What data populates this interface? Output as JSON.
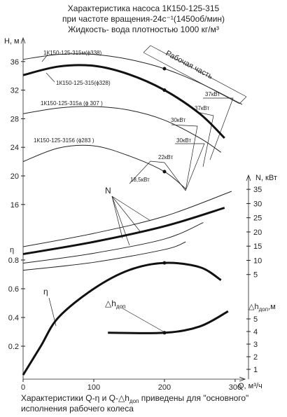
{
  "chart_data": {
    "type": "line",
    "title": [
      "Характеристика насоса 1К150-125-315",
      "при частоте вращения-24с⁻¹(1450об/мин)",
      "Жидкость- вода плотностью 1000 кг/м³"
    ],
    "caption": [
      [
        "Характеристики Q-η и Q-△h",
        "доп",
        " приведены для \"основного\""
      ],
      [
        "исполнения рабочего колеса"
      ]
    ],
    "x_label": "Q, м³/ч",
    "y_label": "H, м",
    "y2_label": "N, кВт",
    "y3_label": "η",
    "y4_label": {
      "main": "△h",
      "sub": "доп",
      "unit": ",м"
    },
    "xlim": [
      0,
      310
    ],
    "xticks": [
      0,
      100,
      200,
      300
    ],
    "ylim": [
      15,
      38.5
    ],
    "yticks": [
      16,
      20,
      24,
      28,
      32,
      36
    ],
    "y2lim": [
      0,
      38
    ],
    "y2ticks": [
      5,
      10,
      15,
      20,
      25,
      30,
      35
    ],
    "y3lim": [
      0,
      0.9
    ],
    "y3ticks": [
      0.2,
      0.4,
      0.6,
      0.8
    ],
    "y4lim": [
      1,
      6
    ],
    "y4ticks": [
      1,
      2,
      3,
      4,
      5
    ],
    "series": [
      {
        "name": "1К150-125-315м(ϕ338)",
        "color": "#222",
        "linewidth": 1,
        "axis": "y",
        "x": [
          0,
          50,
          100,
          150,
          200,
          250,
          300,
          310
        ],
        "values": [
          36.3,
          37.0,
          37.0,
          36.3,
          35.0,
          33.0,
          30.5,
          30.0
        ]
      },
      {
        "name": "1К150-125-315(ϕ328)",
        "color": "#111",
        "linewidth": 3,
        "axis": "y",
        "x": [
          0,
          50,
          100,
          150,
          200,
          250,
          285
        ],
        "values": [
          34.1,
          35.3,
          35.4,
          34.2,
          32.0,
          28.7,
          25.3
        ]
      },
      {
        "name": "1К150-125-315а (ϕ 307 )",
        "color": "#222",
        "linewidth": 1,
        "axis": "y",
        "x": [
          0,
          50,
          100,
          150,
          200,
          250,
          280
        ],
        "values": [
          28.7,
          29.5,
          29.7,
          29.2,
          27.8,
          25.3,
          23.3
        ]
      },
      {
        "name": "1К150-125-3156 (ϕ283 )",
        "color": "#222",
        "linewidth": 1,
        "axis": "y",
        "x": [
          0,
          50,
          100,
          150,
          200,
          230
        ],
        "values": [
          22.0,
          23.9,
          24.2,
          22.8,
          20.6,
          18.2
        ]
      },
      {
        "name": "N",
        "color": "#222",
        "linewidth": 1,
        "axis": "y2",
        "x": [
          0,
          100,
          200,
          295
        ],
        "values": [
          14.8,
          19.5,
          25.5,
          34.3
        ]
      },
      {
        "name": "N",
        "color": "#111",
        "linewidth": 3,
        "axis": "y2",
        "x": [
          0,
          100,
          200,
          285
        ],
        "values": [
          12.2,
          16.5,
          22.0,
          28.5
        ]
      },
      {
        "name": "N",
        "color": "#222",
        "linewidth": 1,
        "axis": "y2",
        "x": [
          0,
          100,
          200,
          255
        ],
        "values": [
          9.0,
          12.5,
          17.5,
          23.3
        ]
      },
      {
        "name": "N",
        "color": "#222",
        "linewidth": 1,
        "axis": "y2",
        "x": [
          0,
          100,
          200,
          230
        ],
        "values": [
          6.5,
          9.3,
          13.8,
          16.5
        ]
      },
      {
        "name": "η",
        "color": "#111",
        "linewidth": 3,
        "axis": "y3",
        "x": [
          0,
          25,
          50,
          100,
          150,
          200,
          250,
          280
        ],
        "values": [
          0,
          0.2,
          0.4,
          0.6,
          0.73,
          0.78,
          0.75,
          0.66
        ]
      },
      {
        "name": "△h",
        "color": "#111",
        "linewidth": 3,
        "axis": "y4",
        "x": [
          120,
          200,
          250,
          290
        ],
        "values": [
          3.9,
          3.9,
          4.4,
          5.6
        ]
      }
    ],
    "annotations": {
      "work": "Рабочая часть",
      "kw": [
        "37кВт",
        "37кВт",
        "30кВт",
        "30кВт",
        "22кВт",
        "18,5кВт"
      ],
      "n": "N",
      "eta": "η",
      "dh": "△h",
      "dh_sub": "доп"
    }
  }
}
